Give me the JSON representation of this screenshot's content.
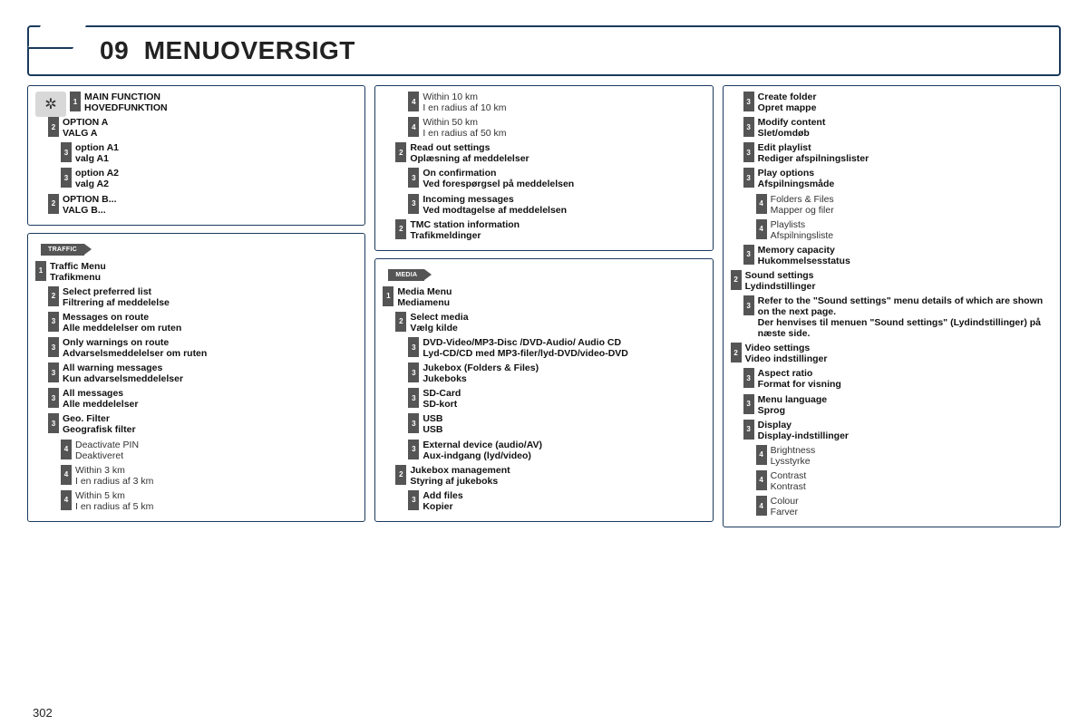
{
  "colors": {
    "border": "#1a3a5c",
    "levelbox_bg": "#555555",
    "levelbox_fg": "#ffffff",
    "text": "#111111",
    "nonbold_text": "#333333",
    "icon_bg": "#d8d8d8"
  },
  "header": {
    "number": "09",
    "title": "MENUOVERSIGT"
  },
  "page_number": "302",
  "columns": [
    {
      "panels": [
        {
          "icon": "gear",
          "header_item": {
            "level": "1",
            "line1": "MAIN FUNCTION",
            "line2": "HOVEDFUNKTION",
            "indent": 0,
            "bold": true
          },
          "items": [
            {
              "level": "2",
              "line1": "OPTION A",
              "line2": "VALG A",
              "indent": 1,
              "bold": true
            },
            {
              "level": "3",
              "line1": "option A1",
              "line2": "valg A1",
              "indent": 2,
              "bold": true
            },
            {
              "level": "3",
              "line1": "option A2",
              "line2": "valg A2",
              "indent": 2,
              "bold": true
            },
            {
              "level": "2",
              "line1": "OPTION B...",
              "line2": "VALG B...",
              "indent": 1,
              "bold": true
            }
          ]
        },
        {
          "section_label": "TRAFFIC",
          "items": [
            {
              "level": "1",
              "line1": "Traffic Menu",
              "line2": "Trafikmenu",
              "indent": 0,
              "bold": true
            },
            {
              "level": "2",
              "line1": "Select preferred list",
              "line2": "Filtrering af meddelelse",
              "indent": 1,
              "bold": true
            },
            {
              "level": "3",
              "line1": "Messages on route",
              "line2": "Alle meddelelser om ruten",
              "indent": 1,
              "bold": true
            },
            {
              "level": "3",
              "line1": "Only warnings on route",
              "line2": "Advarselsmeddelelser om ruten",
              "indent": 1,
              "bold": true
            },
            {
              "level": "3",
              "line1": "All warning messages",
              "line2": "Kun advarselsmeddelelser",
              "indent": 1,
              "bold": true
            },
            {
              "level": "3",
              "line1": "All messages",
              "line2": "Alle meddelelser",
              "indent": 1,
              "bold": true
            },
            {
              "level": "3",
              "line1": "Geo. Filter",
              "line2": "Geografisk filter",
              "indent": 1,
              "bold": true
            },
            {
              "level": "4",
              "line1": "Deactivate PIN",
              "line2": "Deaktiveret",
              "indent": 2,
              "bold": false
            },
            {
              "level": "4",
              "line1": "Within 3 km",
              "line2": "I en radius af 3 km",
              "indent": 2,
              "bold": false
            },
            {
              "level": "4",
              "line1": "Within 5 km",
              "line2": "I en radius af 5 km",
              "indent": 2,
              "bold": false
            }
          ]
        }
      ]
    },
    {
      "panels": [
        {
          "items": [
            {
              "level": "4",
              "line1": "Within 10 km",
              "line2": "I en radius af 10 km",
              "indent": 2,
              "bold": false
            },
            {
              "level": "4",
              "line1": "Within 50 km",
              "line2": "I en radius af 50 km",
              "indent": 2,
              "bold": false
            },
            {
              "level": "2",
              "line1": "Read out settings",
              "line2": "Oplæsning af meddelelser",
              "indent": 1,
              "bold": true
            },
            {
              "level": "3",
              "line1": "On confirmation",
              "line2": "Ved forespørgsel på meddelelsen",
              "indent": 2,
              "bold": true
            },
            {
              "level": "3",
              "line1": "Incoming messages",
              "line2": "Ved modtagelse af meddelelsen",
              "indent": 2,
              "bold": true
            },
            {
              "level": "2",
              "line1": "TMC station information",
              "line2": "Trafikmeldinger",
              "indent": 1,
              "bold": true
            }
          ]
        },
        {
          "section_label": "MEDIA",
          "items": [
            {
              "level": "1",
              "line1": "Media Menu",
              "line2": "Mediamenu",
              "indent": 0,
              "bold": true
            },
            {
              "level": "2",
              "line1": "Select media",
              "line2": "Vælg kilde",
              "indent": 1,
              "bold": true
            },
            {
              "level": "3",
              "line1": "DVD-Video/MP3-Disc /DVD-Audio/ Audio CD",
              "line2": "Lyd-CD/CD med MP3-filer/lyd-DVD/video-DVD",
              "indent": 2,
              "bold": true
            },
            {
              "level": "3",
              "line1": "Jukebox (Folders & Files)",
              "line2": "Jukeboks",
              "indent": 2,
              "bold": true
            },
            {
              "level": "3",
              "line1": "SD-Card",
              "line2": "SD-kort",
              "indent": 2,
              "bold": true
            },
            {
              "level": "3",
              "line1": "USB",
              "line2": "USB",
              "indent": 2,
              "bold": true
            },
            {
              "level": "3",
              "line1": "External device (audio/AV)",
              "line2": "Aux-indgang (lyd/video)",
              "indent": 2,
              "bold": true
            },
            {
              "level": "2",
              "line1": "Jukebox management",
              "line2": "Styring af jukeboks",
              "indent": 1,
              "bold": true
            },
            {
              "level": "3",
              "line1": "Add files",
              "line2": "Kopier",
              "indent": 2,
              "bold": true
            }
          ]
        }
      ]
    },
    {
      "panels": [
        {
          "items": [
            {
              "level": "3",
              "line1": "Create folder",
              "line2": "Opret mappe",
              "indent": 1,
              "bold": true
            },
            {
              "level": "3",
              "line1": "Modify content",
              "line2": "Slet/omdøb",
              "indent": 1,
              "bold": true
            },
            {
              "level": "3",
              "line1": "Edit playlist",
              "line2": "Rediger afspilningslister",
              "indent": 1,
              "bold": true
            },
            {
              "level": "3",
              "line1": "Play options",
              "line2": "Afspilningsmåde",
              "indent": 1,
              "bold": true
            },
            {
              "level": "4",
              "line1": "Folders & Files",
              "line2": "Mapper og filer",
              "indent": 2,
              "bold": false
            },
            {
              "level": "4",
              "line1": "Playlists",
              "line2": "Afspilningsliste",
              "indent": 2,
              "bold": false
            },
            {
              "level": "3",
              "line1": "Memory capacity",
              "line2": "Hukommelsesstatus",
              "indent": 1,
              "bold": true
            },
            {
              "level": "2",
              "line1": "Sound settings",
              "line2": "Lydindstillinger",
              "indent": 0,
              "bold": true
            },
            {
              "level": "3",
              "line1": "Refer to the \"Sound settings\" menu details of which are shown on the next page.",
              "line2": "Der henvises til menuen \"Sound settings\" (Lydindstillinger) på næste side.",
              "indent": 1,
              "bold": true
            },
            {
              "level": "2",
              "line1": "Video settings",
              "line2": "Video indstillinger",
              "indent": 0,
              "bold": true
            },
            {
              "level": "3",
              "line1": "Aspect ratio",
              "line2": "Format for visning",
              "indent": 1,
              "bold": true
            },
            {
              "level": "3",
              "line1": "Menu language",
              "line2": "Sprog",
              "indent": 1,
              "bold": true
            },
            {
              "level": "3",
              "line1": "Display",
              "line2": "Display-indstillinger",
              "indent": 1,
              "bold": true
            },
            {
              "level": "4",
              "line1": "Brightness",
              "line2": "Lysstyrke",
              "indent": 2,
              "bold": false
            },
            {
              "level": "4",
              "line1": "Contrast",
              "line2": "Kontrast",
              "indent": 2,
              "bold": false
            },
            {
              "level": "4",
              "line1": "Colour",
              "line2": "Farver",
              "indent": 2,
              "bold": false
            }
          ]
        }
      ]
    }
  ]
}
